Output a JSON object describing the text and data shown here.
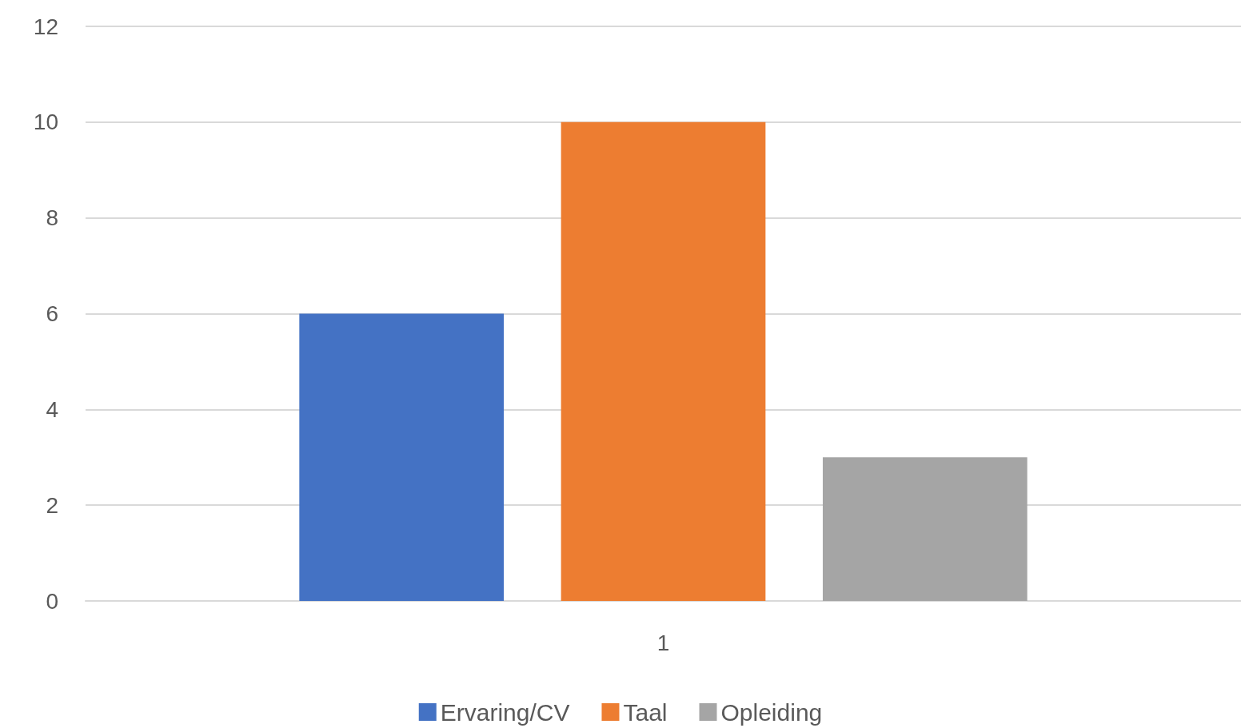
{
  "chart_data": {
    "type": "bar",
    "categories": [
      "1"
    ],
    "series": [
      {
        "name": "Ervaring/CV",
        "color": "#4472c4",
        "values": [
          6
        ]
      },
      {
        "name": "Taal",
        "color": "#ed7d31",
        "values": [
          10
        ]
      },
      {
        "name": "Opleiding",
        "color": "#a5a5a5",
        "values": [
          3
        ]
      }
    ],
    "ylim": [
      0,
      12
    ],
    "yticks": [
      0,
      2,
      4,
      6,
      8,
      10,
      12
    ],
    "grid": "y",
    "legend": "bottom"
  }
}
